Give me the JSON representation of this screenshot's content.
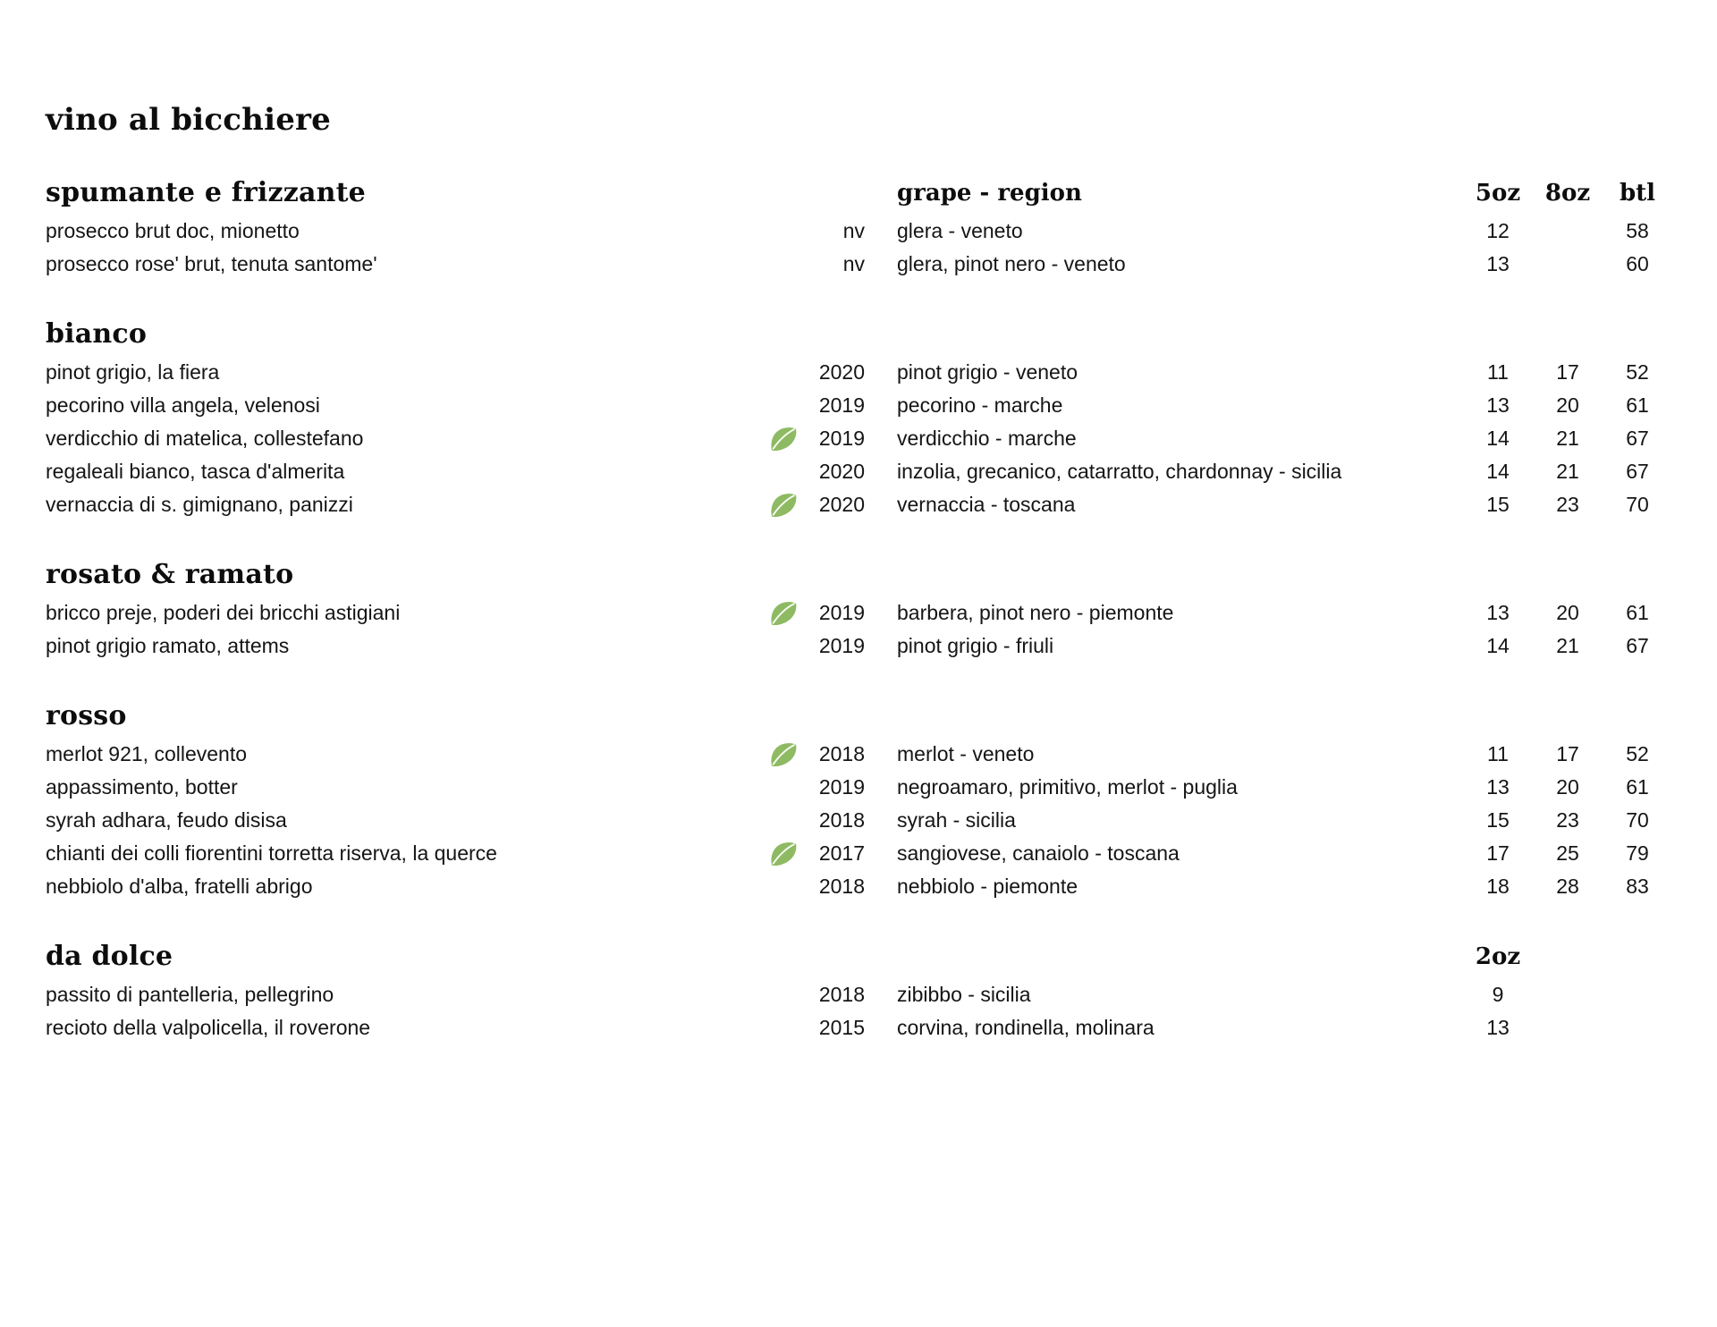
{
  "page": {
    "title": "vino al bicchiere"
  },
  "colors": {
    "leaf_green": "#8eba63",
    "leaf_vein": "#f7fbf2",
    "text": "#151515",
    "background": "#ffffff"
  },
  "icons": {
    "organic_marker": "leaf-icon"
  },
  "sections": [
    {
      "id": "spumante-e-frizzante",
      "heading": "spumante e frizzante",
      "columns_header": {
        "grape": "grape - region",
        "size1": "5oz",
        "size2": "8oz",
        "bottle": "btl"
      },
      "items": [
        {
          "name": "prosecco brut doc, mionetto",
          "organic": false,
          "vintage": "nv",
          "grape": "glera - veneto",
          "size1": "12",
          "size2": "",
          "bottle": "58"
        },
        {
          "name": "prosecco rose' brut, tenuta santome'",
          "organic": false,
          "vintage": "nv",
          "grape": "glera, pinot nero - veneto",
          "size1": "13",
          "size2": "",
          "bottle": "60"
        }
      ]
    },
    {
      "id": "bianco",
      "heading": "bianco",
      "items": [
        {
          "name": "pinot grigio, la fiera",
          "organic": false,
          "vintage": "2020",
          "grape": "pinot grigio - veneto",
          "size1": "11",
          "size2": "17",
          "bottle": "52"
        },
        {
          "name": "pecorino villa angela, velenosi",
          "organic": false,
          "vintage": "2019",
          "grape": "pecorino - marche",
          "size1": "13",
          "size2": "20",
          "bottle": "61"
        },
        {
          "name": "verdicchio di matelica, collestefano",
          "organic": true,
          "vintage": "2019",
          "grape": "verdicchio - marche",
          "size1": "14",
          "size2": "21",
          "bottle": "67"
        },
        {
          "name": "regaleali bianco, tasca d'almerita",
          "organic": false,
          "vintage": "2020",
          "grape": "inzolia, grecanico, catarratto, chardonnay - sicilia",
          "size1": "14",
          "size2": "21",
          "bottle": "67"
        },
        {
          "name": "vernaccia di s. gimignano, panizzi",
          "organic": true,
          "vintage": "2020",
          "grape": "vernaccia - toscana",
          "size1": "15",
          "size2": "23",
          "bottle": "70"
        }
      ]
    },
    {
      "id": "rosato-e-ramato",
      "heading": "rosato & ramato",
      "items": [
        {
          "name": "bricco preje, poderi dei bricchi astigiani",
          "organic": true,
          "vintage": "2019",
          "grape": "barbera, pinot nero - piemonte",
          "size1": "13",
          "size2": "20",
          "bottle": "61"
        },
        {
          "name": "pinot grigio ramato, attems",
          "organic": false,
          "vintage": "2019",
          "grape": "pinot grigio - friuli",
          "size1": "14",
          "size2": "21",
          "bottle": "67"
        }
      ]
    },
    {
      "id": "rosso",
      "heading": "rosso",
      "items": [
        {
          "name": "merlot 921, collevento",
          "organic": true,
          "vintage": "2018",
          "grape": "merlot - veneto",
          "size1": "11",
          "size2": "17",
          "bottle": "52"
        },
        {
          "name": "appassimento, botter",
          "organic": false,
          "vintage": "2019",
          "grape": "negroamaro, primitivo, merlot - puglia",
          "size1": "13",
          "size2": "20",
          "bottle": "61"
        },
        {
          "name": "syrah adhara, feudo disisa",
          "organic": false,
          "vintage": "2018",
          "grape": "syrah - sicilia",
          "size1": "15",
          "size2": "23",
          "bottle": "70"
        },
        {
          "name": "chianti dei colli fiorentini torretta riserva, la querce",
          "organic": true,
          "vintage": "2017",
          "grape": "sangiovese, canaiolo - toscana",
          "size1": "17",
          "size2": "25",
          "bottle": "79"
        },
        {
          "name": "nebbiolo d'alba, fratelli abrigo",
          "organic": false,
          "vintage": "2018",
          "grape": "nebbiolo - piemonte",
          "size1": "18",
          "size2": "28",
          "bottle": "83"
        }
      ]
    },
    {
      "id": "da-dolce",
      "heading": "da dolce",
      "columns_header": {
        "size1": "2oz"
      },
      "items": [
        {
          "name": "passito di pantelleria, pellegrino",
          "organic": false,
          "vintage": "2018",
          "grape": "zibibbo - sicilia",
          "size1": "9",
          "size2": "",
          "bottle": ""
        },
        {
          "name": "recioto della valpolicella, il roverone",
          "organic": false,
          "vintage": "2015",
          "grape": "corvina, rondinella, molinara",
          "size1": "13",
          "size2": "",
          "bottle": ""
        }
      ]
    }
  ]
}
